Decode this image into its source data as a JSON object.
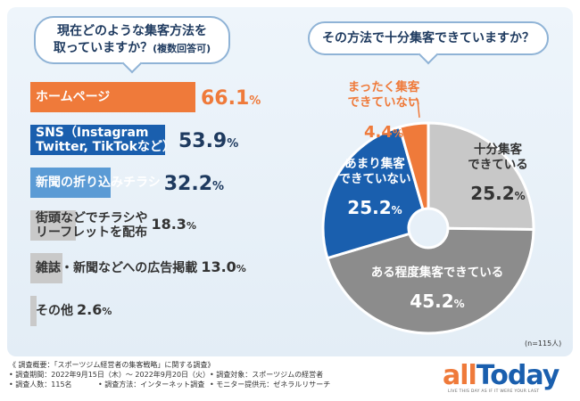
{
  "left_question": {
    "line1": "現在どのような集客方法を",
    "line2": "取っていますか？",
    "suffix": "(複数回答可)"
  },
  "right_question": "その方法で十分集客できていますか？",
  "bars": [
    {
      "label_lines": [
        "ホームページ"
      ],
      "value_main": "66.1",
      "value_unit": "%",
      "value": 66.1,
      "color": "#ef7a3a",
      "text_color": "#ffffff",
      "value_color": "#ef7a3a"
    },
    {
      "label_lines": [
        "SNS（Instagram",
        "Twitter, TikTokなど）"
      ],
      "value_main": "53.9",
      "value_unit": "%",
      "value": 53.9,
      "color": "#1a5fae",
      "text_color": "#ffffff",
      "value_color": "#1e3a5f"
    },
    {
      "label_lines": [
        "新聞の折り込みチラシ"
      ],
      "value_main": "32.2",
      "value_unit": "%",
      "value": 32.2,
      "color": "#5b9bd5",
      "text_color": "#ffffff",
      "value_color": "#1e3a5f"
    },
    {
      "label_lines": [
        "街頭などでチラシや",
        "リーフレットを配布"
      ],
      "value_main": "18.3",
      "value_unit": "%",
      "value": 18.3,
      "color": "#c9c9c9",
      "text_color": "#333333",
      "value_color": "#333333"
    },
    {
      "label_lines": [
        "雑誌・新聞などへの広告掲載"
      ],
      "value_main": "13.0",
      "value_unit": "%",
      "value": 13.0,
      "color": "#c9c9c9",
      "text_color": "#333333",
      "value_color": "#333333"
    },
    {
      "label_lines": [
        "その他"
      ],
      "value_main": "2.6",
      "value_unit": "%",
      "value": 2.6,
      "color": "#c9c9c9",
      "text_color": "#333333",
      "value_color": "#333333"
    }
  ],
  "chart_data": [
    {
      "type": "bar",
      "title": "現在どのような集客方法を取っていますか？(複数回答可)",
      "categories": [
        "ホームページ",
        "SNS（Instagram Twitter, TikTokなど）",
        "新聞の折り込みチラシ",
        "街頭などでチラシやリーフレットを配布",
        "雑誌・新聞などへの広告掲載",
        "その他"
      ],
      "values": [
        66.1,
        53.9,
        32.2,
        18.3,
        13.0,
        2.6
      ],
      "unit": "%",
      "orientation": "horizontal"
    },
    {
      "type": "pie",
      "title": "その方法で十分集客できていますか？",
      "slices": [
        {
          "label_lines": [
            "十分集客",
            "できている"
          ],
          "value": 25.2,
          "value_main": "25.2",
          "color": "#c8c8c8",
          "label_color": "#333333"
        },
        {
          "label_lines": [
            "ある程度集客できている"
          ],
          "value": 45.2,
          "value_main": "45.2",
          "color": "#8c8c8c",
          "label_color": "#ffffff"
        },
        {
          "label_lines": [
            "あまり集客",
            "できていない"
          ],
          "value": 25.2,
          "value_main": "25.2",
          "color": "#1a5fae",
          "label_color": "#ffffff"
        },
        {
          "label_lines": [
            "まったく集客",
            "できていない"
          ],
          "value": 4.4,
          "value_main": "4.4",
          "color": "#ef7a3a",
          "label_color": "#ef7a3a"
        }
      ],
      "unit": "%",
      "sample_size": "(n=115人)"
    }
  ],
  "footer": {
    "overview": "《 調査概要：「スポーツジム経営者の集客戦略」に関する調査》",
    "period": "• 調査期間：2022年9月15日（木）～ 2022年9月20日（火）",
    "target": "• 調査対象：スポーツジムの経営者",
    "count": "• 調査人数：115名",
    "method": "• 調査方法：インターネット調査",
    "provider": "• モニター提供元：ゼネラルリサーチ"
  },
  "logo": {
    "text_all": "all",
    "text_today": "Today",
    "tagline": "LIVE THIS DAY AS IF IT WERE YOUR LAST",
    "color_all": "#ef7a3a",
    "color_today": "#1a5fae"
  }
}
